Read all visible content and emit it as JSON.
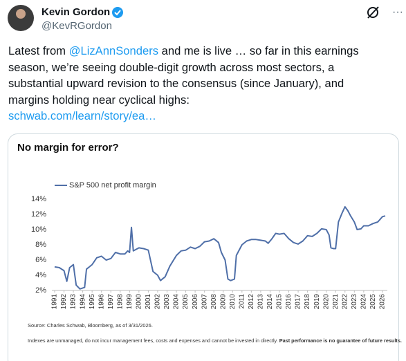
{
  "tweet": {
    "name": "Kevin Gordon",
    "handle": "@KevRGordon",
    "text": [
      "Latest from ",
      "@LizAnnSonders",
      " and me is live … so far in this earnings season, we’re seeing double-digit growth across most sectors, a substantial upward revision to the consensus (since January), and margins holding near cyclical highs:"
    ],
    "link": "schwab.com/learn/story/ea…"
  },
  "chart_data": {
    "type": "line",
    "title": "No margin for error?",
    "x": [
      1991.0,
      1991.5,
      1992.0,
      1992.3,
      1992.6,
      1993.0,
      1993.3,
      1993.7,
      1994.2,
      1994.4,
      1995.0,
      1995.5,
      1996.0,
      1996.5,
      1997.0,
      1997.5,
      1998.0,
      1998.5,
      1998.8,
      1999.0,
      1999.2,
      1999.4,
      2000.0,
      2000.5,
      2001.0,
      2001.5,
      2002.0,
      2002.3,
      2002.8,
      2003.3,
      2004.0,
      2004.5,
      2005.0,
      2005.5,
      2006.0,
      2006.5,
      2007.0,
      2007.5,
      2008.0,
      2008.5,
      2008.8,
      2009.2,
      2009.5,
      2009.8,
      2010.2,
      2010.4,
      2011.0,
      2011.5,
      2012.0,
      2012.5,
      2013.0,
      2013.5,
      2013.8,
      2014.2,
      2014.6,
      2015.0,
      2015.5,
      2016.0,
      2016.5,
      2017.0,
      2017.5,
      2018.0,
      2018.5,
      2019.0,
      2019.5,
      2020.0,
      2020.3,
      2020.5,
      2020.8,
      2021.0,
      2021.3,
      2021.7,
      2022.0,
      2022.3,
      2022.6,
      2023.0,
      2023.3,
      2023.7,
      2024.0,
      2024.5,
      2025.0,
      2025.5,
      2026.0,
      2026.3
    ],
    "series": [
      {
        "name": "S&P 500 net profit margin",
        "color": "#4f6fa8",
        "values": [
          5.1,
          5.0,
          4.6,
          3.2,
          5.0,
          5.4,
          2.7,
          2.2,
          2.4,
          4.8,
          5.4,
          6.3,
          6.5,
          6.0,
          6.2,
          7.0,
          6.8,
          6.8,
          7.2,
          7.0,
          10.3,
          7.2,
          7.6,
          7.5,
          7.3,
          4.5,
          4.0,
          3.3,
          3.8,
          5.2,
          6.6,
          7.2,
          7.3,
          7.7,
          7.5,
          7.8,
          8.4,
          8.5,
          8.8,
          8.3,
          7.0,
          6.0,
          3.5,
          3.3,
          3.5,
          6.6,
          8.0,
          8.5,
          8.7,
          8.7,
          8.6,
          8.5,
          8.2,
          8.8,
          9.5,
          9.4,
          9.5,
          8.8,
          8.3,
          8.1,
          8.5,
          9.2,
          9.1,
          9.5,
          10.1,
          10.0,
          9.3,
          7.6,
          7.5,
          7.5,
          11.0,
          12.2,
          13.0,
          12.5,
          11.8,
          11.0,
          10.0,
          10.1,
          10.5,
          10.5,
          10.8,
          11.0,
          11.7,
          11.8
        ]
      }
    ],
    "xlim": [
      1991,
      2026.3
    ],
    "xticks": [
      1991,
      1992,
      1993,
      1994,
      1995,
      1996,
      1997,
      1998,
      1999,
      2000,
      2001,
      2002,
      2003,
      2004,
      2005,
      2006,
      2007,
      2008,
      2009,
      2010,
      2011,
      2012,
      2013,
      2014,
      2015,
      2016,
      2017,
      2018,
      2019,
      2020,
      2021,
      2022,
      2023,
      2024,
      2025,
      2026
    ],
    "ylim": [
      2,
      14
    ],
    "yticks": [
      {
        "value": 2,
        "label": "2%"
      },
      {
        "value": 4,
        "label": "4%"
      },
      {
        "value": 6,
        "label": "6%"
      },
      {
        "value": 8,
        "label": "8%"
      },
      {
        "value": 10,
        "label": "10%"
      },
      {
        "value": 12,
        "label": "12%"
      },
      {
        "value": 14,
        "label": "14%"
      }
    ],
    "grid": false,
    "source": "Source: Charles Schwab, Bloomberg, as of 3/31/2026.",
    "disclaimer": [
      "Indexes are unmanaged, do not incur management fees, costs and expenses and cannot be invested in directly. ",
      "Past performance is no guarantee of future results."
    ]
  }
}
